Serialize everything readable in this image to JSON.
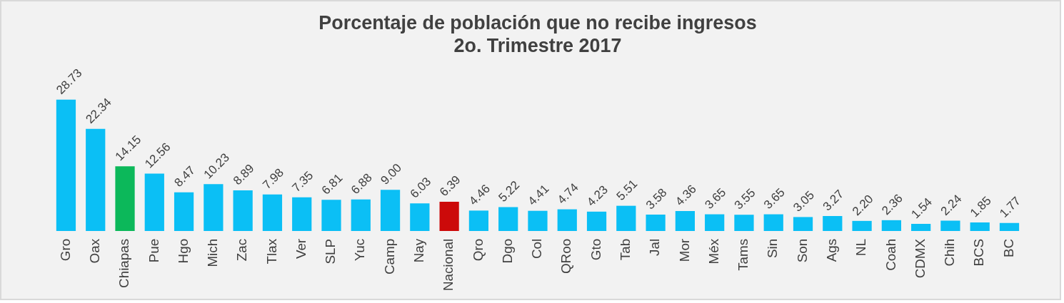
{
  "chart_data": {
    "type": "bar",
    "title": "Porcentaje de población que no recibe ingresos",
    "subtitle": "2o. Trimestre 2017",
    "categories": [
      "Gro",
      "Oax",
      "Chiapas",
      "Pue",
      "Hgo",
      "Mich",
      "Zac",
      "Tlax",
      "Ver",
      "SLP",
      "Yuc",
      "Camp",
      "Nay",
      "Nacional",
      "Qro",
      "Dgo",
      "Col",
      "QRoo",
      "Gto",
      "Tab",
      "Jal",
      "Mor",
      "Méx",
      "Tams",
      "Sin",
      "Son",
      "Ags",
      "NL",
      "Coah",
      "CDMX",
      "Chih",
      "BCS",
      "BC"
    ],
    "values": [
      28.73,
      22.34,
      14.15,
      12.56,
      8.47,
      10.23,
      8.89,
      7.98,
      7.35,
      6.81,
      6.88,
      9.0,
      6.03,
      6.39,
      4.46,
      5.22,
      4.41,
      4.74,
      4.23,
      5.51,
      3.58,
      4.36,
      3.65,
      3.55,
      3.65,
      3.05,
      3.27,
      2.2,
      2.36,
      1.54,
      2.24,
      1.85,
      1.77
    ],
    "value_labels": [
      "28.73",
      "22.34",
      "14.15",
      "12.56",
      "8.47",
      "10.23",
      "8.89",
      "7.98",
      "7.35",
      "6.81",
      "6.88",
      "9.00",
      "6.03",
      "6.39",
      "4.46",
      "5.22",
      "4.41",
      "4.74",
      "4.23",
      "5.51",
      "3.58",
      "4.36",
      "3.65",
      "3.55",
      "3.65",
      "3.05",
      "3.27",
      "2.20",
      "2.36",
      "1.54",
      "2.24",
      "1.85",
      "1.77"
    ],
    "colors": [
      "#0bbff5",
      "#0bbff5",
      "#0cb85a",
      "#0bbff5",
      "#0bbff5",
      "#0bbff5",
      "#0bbff5",
      "#0bbff5",
      "#0bbff5",
      "#0bbff5",
      "#0bbff5",
      "#0bbff5",
      "#0bbff5",
      "#cc0a0a",
      "#0bbff5",
      "#0bbff5",
      "#0bbff5",
      "#0bbff5",
      "#0bbff5",
      "#0bbff5",
      "#0bbff5",
      "#0bbff5",
      "#0bbff5",
      "#0bbff5",
      "#0bbff5",
      "#0bbff5",
      "#0bbff5",
      "#0bbff5",
      "#0bbff5",
      "#0bbff5",
      "#0bbff5",
      "#0bbff5",
      "#0bbff5"
    ],
    "tick_labels": "x",
    "grid": false,
    "legend": false
  }
}
